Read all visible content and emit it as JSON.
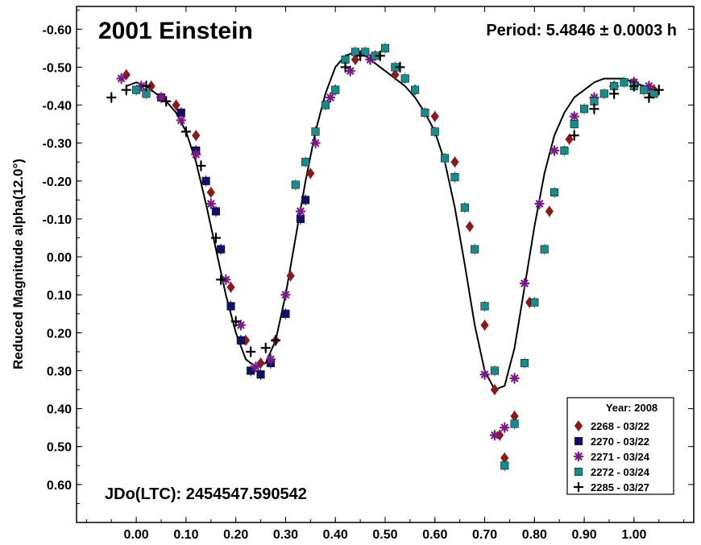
{
  "chart_data": {
    "type": "scatter",
    "title": "2001 Einstein",
    "period_label": "Period: 5.4846 ± 0.0003 h",
    "jd_label": "JDo(LTC): 2454547.590542",
    "xlabel": "",
    "ylabel": "Reduced Magnitude alpha(12.0°)",
    "xlim": [
      -0.12,
      1.12
    ],
    "ylim": [
      0.7,
      -0.66
    ],
    "y_inverted": true,
    "x_ticks": [
      "0.00",
      "0.10",
      "0.20",
      "0.30",
      "0.40",
      "0.50",
      "0.60",
      "0.70",
      "0.80",
      "0.90",
      "1.00"
    ],
    "x_tick_values": [
      0,
      0.1,
      0.2,
      0.3,
      0.4,
      0.5,
      0.6,
      0.7,
      0.8,
      0.9,
      1.0
    ],
    "y_ticks": [
      "-0.60",
      "-0.50",
      "-0.40",
      "-0.30",
      "-0.20",
      "-0.10",
      "0.00",
      "0.10",
      "0.20",
      "0.30",
      "0.40",
      "0.50",
      "0.60"
    ],
    "y_tick_values": [
      -0.6,
      -0.5,
      -0.4,
      -0.3,
      -0.2,
      -0.1,
      0,
      0.1,
      0.2,
      0.3,
      0.4,
      0.5,
      0.6
    ],
    "legend": {
      "title": "Year: 2008",
      "placement": "bottom-right",
      "entries": [
        {
          "label": "2268 - 03/22",
          "marker": "diamond",
          "color": "#8b1a1a"
        },
        {
          "label": "2270 - 03/22",
          "marker": "square",
          "color": "#10106a"
        },
        {
          "label": "2271 - 03/24",
          "marker": "asterisk",
          "color": "#7a1a8a"
        },
        {
          "label": "2272 - 03/24",
          "marker": "square",
          "color": "#1a8a8a"
        },
        {
          "label": "2285 - 03/27",
          "marker": "plus",
          "color": "#000000"
        }
      ]
    },
    "curve": {
      "color": "#000000",
      "x": [
        -0.02,
        0.0,
        0.02,
        0.04,
        0.06,
        0.08,
        0.1,
        0.12,
        0.14,
        0.16,
        0.18,
        0.2,
        0.22,
        0.24,
        0.26,
        0.28,
        0.3,
        0.32,
        0.34,
        0.36,
        0.38,
        0.4,
        0.42,
        0.44,
        0.46,
        0.48,
        0.5,
        0.52,
        0.54,
        0.56,
        0.58,
        0.6,
        0.62,
        0.64,
        0.66,
        0.68,
        0.7,
        0.72,
        0.74,
        0.76,
        0.78,
        0.8,
        0.82,
        0.84,
        0.86,
        0.88,
        0.9,
        0.92,
        0.94,
        0.96,
        0.98,
        1.0,
        1.02,
        1.04,
        1.05
      ],
      "y": [
        -0.45,
        -0.46,
        -0.45,
        -0.43,
        -0.41,
        -0.38,
        -0.33,
        -0.25,
        -0.14,
        -0.02,
        0.1,
        0.2,
        0.27,
        0.29,
        0.28,
        0.22,
        0.1,
        -0.05,
        -0.2,
        -0.33,
        -0.43,
        -0.5,
        -0.53,
        -0.54,
        -0.53,
        -0.51,
        -0.49,
        -0.47,
        -0.45,
        -0.42,
        -0.38,
        -0.33,
        -0.25,
        -0.13,
        0.02,
        0.18,
        0.3,
        0.35,
        0.34,
        0.24,
        0.08,
        -0.08,
        -0.22,
        -0.32,
        -0.38,
        -0.42,
        -0.44,
        -0.46,
        -0.47,
        -0.47,
        -0.47,
        -0.46,
        -0.45,
        -0.44,
        -0.44
      ]
    },
    "series": [
      {
        "name": "2268 - 03/22",
        "marker": "diamond",
        "color": "#8b1a1a",
        "x": [
          -0.02,
          0.03,
          0.08,
          0.12,
          0.15,
          0.19,
          0.22,
          0.25,
          0.28,
          0.31,
          0.35,
          0.4,
          0.44,
          0.48,
          0.52,
          0.56,
          0.6,
          0.64,
          0.67,
          0.7,
          0.72,
          0.73,
          0.74,
          0.76,
          0.79,
          0.83,
          0.87,
          0.92,
          0.96,
          1.0,
          1.04
        ],
        "y": [
          -0.48,
          -0.45,
          -0.4,
          -0.32,
          -0.17,
          0.08,
          0.22,
          0.28,
          0.22,
          0.05,
          -0.22,
          -0.44,
          -0.52,
          -0.53,
          -0.48,
          -0.44,
          -0.37,
          -0.25,
          -0.08,
          0.18,
          0.35,
          0.47,
          0.53,
          0.42,
          0.12,
          -0.12,
          -0.31,
          -0.41,
          -0.45,
          -0.46,
          -0.44
        ]
      },
      {
        "name": "2270 - 03/22",
        "marker": "square",
        "color": "#10106a",
        "x": [
          0.05,
          0.09,
          0.12,
          0.14,
          0.16,
          0.17,
          0.19,
          0.21,
          0.23,
          0.25,
          0.27,
          0.3,
          0.33,
          0.34
        ],
        "y": [
          -0.42,
          -0.38,
          -0.28,
          -0.2,
          -0.12,
          -0.02,
          0.13,
          0.22,
          0.3,
          0.31,
          0.28,
          0.15,
          -0.1,
          -0.15
        ]
      },
      {
        "name": "2271 - 03/24",
        "marker": "asterisk",
        "color": "#7a1a8a",
        "x": [
          -0.03,
          0.01,
          0.05,
          0.09,
          0.12,
          0.15,
          0.18,
          0.21,
          0.24,
          0.27,
          0.3,
          0.33,
          0.36,
          0.39,
          0.43,
          0.47,
          0.7,
          0.72,
          0.74,
          0.76,
          0.78,
          0.81,
          0.84,
          0.88,
          0.92,
          0.96,
          1.0,
          1.03
        ],
        "y": [
          -0.47,
          -0.45,
          -0.42,
          -0.36,
          -0.27,
          -0.14,
          0.06,
          0.18,
          0.29,
          0.27,
          0.1,
          -0.12,
          -0.3,
          -0.42,
          -0.49,
          -0.52,
          0.31,
          0.47,
          0.45,
          0.32,
          0.07,
          -0.14,
          -0.28,
          -0.37,
          -0.42,
          -0.45,
          -0.46,
          -0.45
        ]
      },
      {
        "name": "2272 - 03/24",
        "marker": "square",
        "color": "#1a8a8a",
        "x": [
          0.0,
          0.02,
          0.32,
          0.34,
          0.36,
          0.38,
          0.4,
          0.42,
          0.44,
          0.46,
          0.48,
          0.5,
          0.52,
          0.54,
          0.56,
          0.58,
          0.6,
          0.62,
          0.64,
          0.66,
          0.68,
          0.7,
          0.72,
          0.74,
          0.76,
          0.78,
          0.8,
          0.82,
          0.84,
          0.86,
          0.88,
          0.9,
          0.92,
          0.94,
          0.96,
          0.98,
          1.0,
          1.02,
          1.04
        ],
        "y": [
          -0.44,
          -0.43,
          -0.19,
          -0.25,
          -0.33,
          -0.4,
          -0.44,
          -0.52,
          -0.54,
          -0.54,
          -0.53,
          -0.55,
          -0.5,
          -0.47,
          -0.44,
          -0.38,
          -0.33,
          -0.26,
          -0.21,
          -0.13,
          -0.02,
          0.13,
          0.3,
          0.55,
          0.44,
          0.28,
          0.12,
          -0.02,
          -0.17,
          -0.28,
          -0.35,
          -0.39,
          -0.41,
          -0.43,
          -0.45,
          -0.46,
          -0.45,
          -0.44,
          -0.43
        ]
      },
      {
        "name": "2285 - 03/27",
        "marker": "plus",
        "color": "#000000",
        "x": [
          -0.05,
          -0.02,
          0.02,
          0.06,
          0.1,
          0.13,
          0.16,
          0.17,
          0.2,
          0.23,
          0.26,
          0.28,
          0.42,
          0.45,
          0.49,
          0.53,
          0.88,
          0.92,
          0.96,
          1.0,
          1.03,
          1.05
        ],
        "y": [
          -0.42,
          -0.44,
          -0.45,
          -0.41,
          -0.33,
          -0.24,
          -0.05,
          0.06,
          0.17,
          0.25,
          0.24,
          0.22,
          -0.5,
          -0.53,
          -0.53,
          -0.5,
          -0.32,
          -0.39,
          -0.43,
          -0.45,
          -0.42,
          -0.44
        ]
      }
    ]
  }
}
